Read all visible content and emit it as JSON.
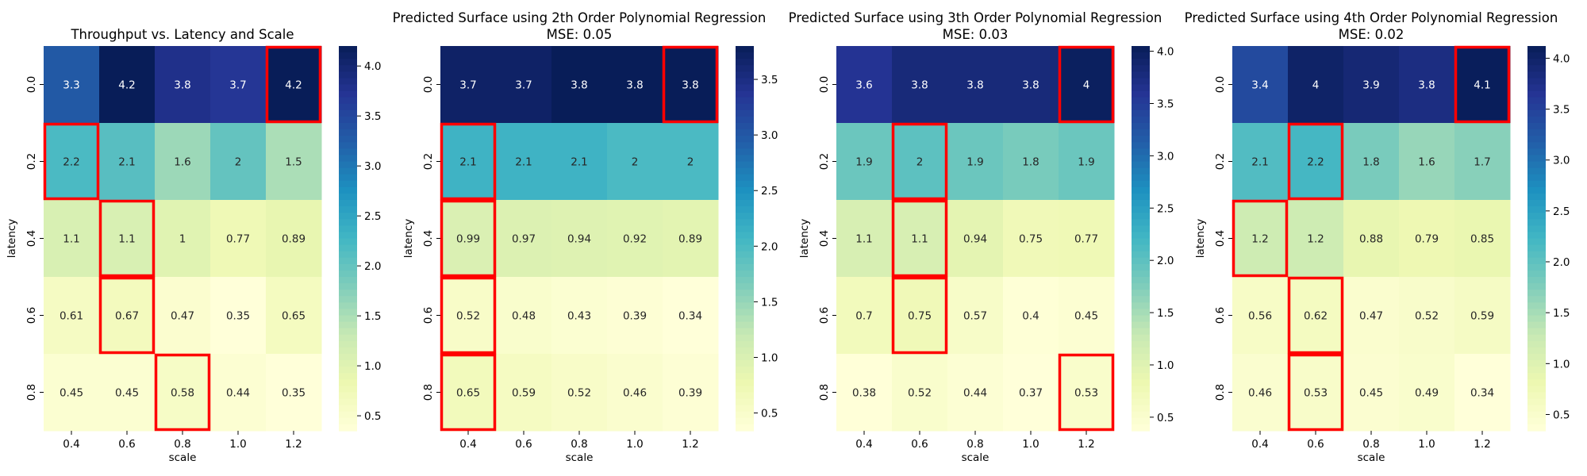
{
  "chart_data": [
    {
      "type": "heatmap",
      "title": "Throughput vs. Latency and Scale",
      "subtitle": "",
      "xlabel": "scale",
      "ylabel": "latency",
      "x": [
        "0.4",
        "0.6",
        "0.8",
        "1.0",
        "1.2"
      ],
      "y": [
        "0.0",
        "0.2",
        "0.4",
        "0.6",
        "0.8"
      ],
      "values": [
        [
          3.3,
          4.2,
          3.8,
          3.7,
          4.2
        ],
        [
          2.2,
          2.1,
          1.6,
          2,
          1.5
        ],
        [
          1.1,
          1.1,
          1,
          0.77,
          0.89
        ],
        [
          0.61,
          0.67,
          0.47,
          0.35,
          0.65
        ],
        [
          0.45,
          0.45,
          0.58,
          0.44,
          0.35
        ]
      ],
      "highlighted_cells": [
        [
          0,
          4
        ],
        [
          1,
          0
        ],
        [
          2,
          1
        ],
        [
          3,
          1
        ],
        [
          4,
          2
        ]
      ],
      "colorbar": {
        "min": 0.35,
        "max": 4.2,
        "ticks": [
          "0.5",
          "1.0",
          "1.5",
          "2.0",
          "2.5",
          "3.0",
          "3.5",
          "4.0"
        ]
      },
      "colormap": "YlGnBu"
    },
    {
      "type": "heatmap",
      "title": "Predicted Surface using 2th Order Polynomial Regression",
      "subtitle": "MSE: 0.05",
      "xlabel": "scale",
      "ylabel": "latency",
      "x": [
        "0.4",
        "0.6",
        "0.8",
        "1.0",
        "1.2"
      ],
      "y": [
        "0.0",
        "0.2",
        "0.4",
        "0.6",
        "0.8"
      ],
      "values": [
        [
          3.7,
          3.7,
          3.8,
          3.8,
          3.8
        ],
        [
          2.1,
          2.1,
          2.1,
          2,
          2
        ],
        [
          0.99,
          0.97,
          0.94,
          0.92,
          0.89
        ],
        [
          0.52,
          0.48,
          0.43,
          0.39,
          0.34
        ],
        [
          0.65,
          0.59,
          0.52,
          0.46,
          0.39
        ]
      ],
      "highlighted_cells": [
        [
          0,
          4
        ],
        [
          1,
          0
        ],
        [
          2,
          0
        ],
        [
          3,
          0
        ],
        [
          4,
          0
        ]
      ],
      "colorbar": {
        "min": 0.34,
        "max": 3.8,
        "ticks": [
          "0.5",
          "1.0",
          "1.5",
          "2.0",
          "2.5",
          "3.0",
          "3.5"
        ]
      },
      "colormap": "YlGnBu"
    },
    {
      "type": "heatmap",
      "title": "Predicted Surface using 3th Order Polynomial Regression",
      "subtitle": "MSE: 0.03",
      "xlabel": "scale",
      "ylabel": "latency",
      "x": [
        "0.4",
        "0.6",
        "0.8",
        "1.0",
        "1.2"
      ],
      "y": [
        "0.0",
        "0.2",
        "0.4",
        "0.6",
        "0.8"
      ],
      "values": [
        [
          3.6,
          3.8,
          3.8,
          3.8,
          4
        ],
        [
          1.9,
          2,
          1.9,
          1.8,
          1.9
        ],
        [
          1.1,
          1.1,
          0.94,
          0.75,
          0.77
        ],
        [
          0.7,
          0.75,
          0.57,
          0.4,
          0.45
        ],
        [
          0.38,
          0.52,
          0.44,
          0.37,
          0.53
        ]
      ],
      "highlighted_cells": [
        [
          0,
          4
        ],
        [
          1,
          1
        ],
        [
          2,
          1
        ],
        [
          3,
          1
        ],
        [
          4,
          4
        ]
      ],
      "colorbar": {
        "min": 0.37,
        "max": 4.05,
        "ticks": [
          "0.5",
          "1.0",
          "1.5",
          "2.0",
          "2.5",
          "3.0",
          "3.5",
          "4.0"
        ]
      },
      "colormap": "YlGnBu"
    },
    {
      "type": "heatmap",
      "title": "Predicted Surface using 4th Order Polynomial Regression",
      "subtitle": "MSE: 0.02",
      "xlabel": "scale",
      "ylabel": "latency",
      "x": [
        "0.4",
        "0.6",
        "0.8",
        "1.0",
        "1.2"
      ],
      "y": [
        "0.0",
        "0.2",
        "0.4",
        "0.6",
        "0.8"
      ],
      "values": [
        [
          3.4,
          4,
          3.9,
          3.8,
          4.1
        ],
        [
          2.1,
          2.2,
          1.8,
          1.6,
          1.7
        ],
        [
          1.2,
          1.2,
          0.88,
          0.79,
          0.85
        ],
        [
          0.56,
          0.62,
          0.47,
          0.52,
          0.59
        ],
        [
          0.46,
          0.53,
          0.45,
          0.49,
          0.34
        ]
      ],
      "highlighted_cells": [
        [
          0,
          4
        ],
        [
          1,
          1
        ],
        [
          2,
          0
        ],
        [
          3,
          1
        ],
        [
          4,
          1
        ]
      ],
      "colorbar": {
        "min": 0.34,
        "max": 4.12,
        "ticks": [
          "0.5",
          "1.0",
          "1.5",
          "2.0",
          "2.5",
          "3.0",
          "3.5",
          "4.0"
        ]
      },
      "colormap": "YlGnBu"
    }
  ]
}
